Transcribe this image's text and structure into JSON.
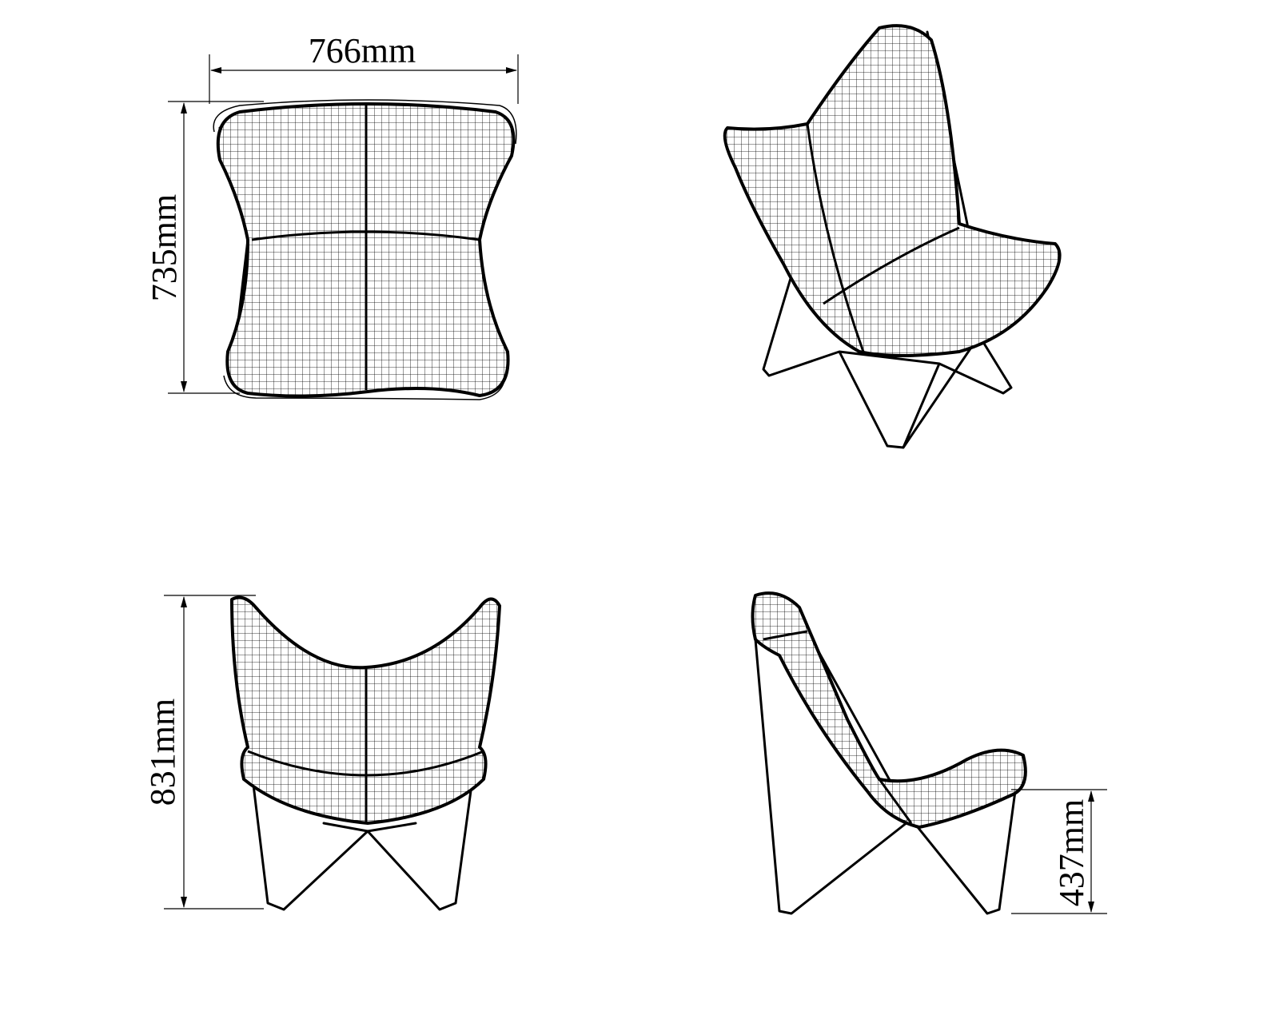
{
  "drawing": {
    "views": [
      {
        "name": "top-view",
        "dimensions": [
          {
            "label": "766mm",
            "orientation": "horizontal"
          },
          {
            "label": "735mm",
            "orientation": "vertical"
          }
        ]
      },
      {
        "name": "perspective-view",
        "dimensions": []
      },
      {
        "name": "front-view",
        "dimensions": [
          {
            "label": "831mm",
            "orientation": "vertical"
          }
        ]
      },
      {
        "name": "side-view",
        "dimensions": [
          {
            "label": "437mm",
            "orientation": "vertical"
          }
        ]
      }
    ],
    "width_label": "766mm",
    "depth_label": "735mm",
    "height_label": "831mm",
    "seat_height_label": "437mm",
    "line_color": "#000000",
    "background_color": "#ffffff"
  }
}
